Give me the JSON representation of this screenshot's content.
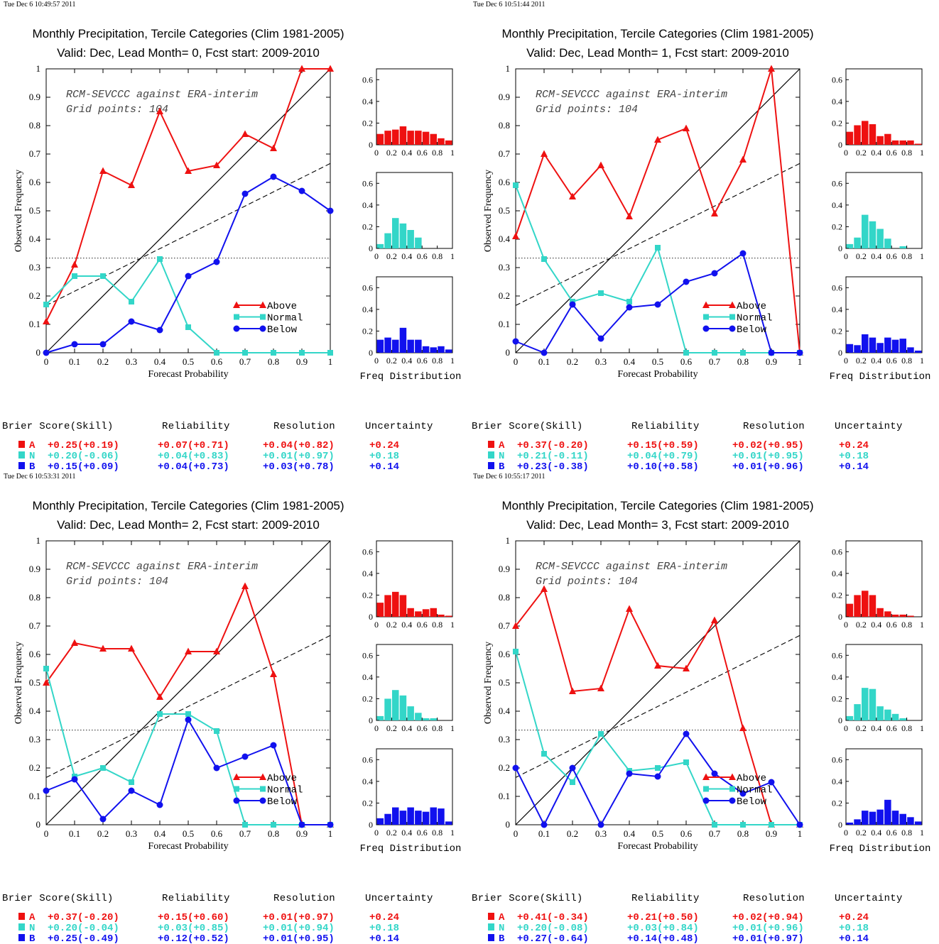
{
  "colors": {
    "above": "#ee1111",
    "normal": "#33d6c8",
    "below": "#1111ee"
  },
  "common": {
    "xlabel": "Forecast Probability",
    "ylabel": "Observed Frequency",
    "freq_label": "Freq Distribution",
    "note_line1": "RCM-SEVCCC against ERA-interim",
    "note_line2": "Grid points:  104",
    "legend": [
      "Above",
      "Normal",
      "Below"
    ],
    "score_headers": [
      "Brier Score(Skill)",
      "Reliability",
      "Resolution",
      "Uncertainty"
    ],
    "row_letters": [
      "A",
      "N",
      "B"
    ]
  },
  "chart_data": [
    {
      "type": "line",
      "timestamp": "Tue Dec  6 10:49:57 2011",
      "title": "Monthly Precipitation, Tercile Categories (Clim 1981-2005)",
      "subtitle": "Valid: Dec, Lead Month= 0, Fcst start: 2009-2010",
      "x": [
        0,
        0.1,
        0.2,
        0.3,
        0.4,
        0.5,
        0.6,
        0.7,
        0.8,
        0.9,
        1
      ],
      "xlim": [
        0,
        1
      ],
      "ylim": [
        0,
        1
      ],
      "series": [
        {
          "name": "Above",
          "values": [
            0.11,
            0.31,
            0.64,
            0.59,
            0.85,
            0.64,
            0.66,
            0.77,
            0.72,
            1.0,
            1.0
          ]
        },
        {
          "name": "Normal",
          "values": [
            0.17,
            0.27,
            0.27,
            0.18,
            0.33,
            0.09,
            0,
            0,
            0,
            0,
            0
          ]
        },
        {
          "name": "Below",
          "values": [
            0,
            0.03,
            0.03,
            0.11,
            0.08,
            0.27,
            0.32,
            0.56,
            0.62,
            0.57,
            0.5
          ]
        }
      ],
      "hist": [
        [
          0.1,
          0.13,
          0.14,
          0.17,
          0.13,
          0.13,
          0.12,
          0.1,
          0.06,
          0.04
        ],
        [
          0.04,
          0.14,
          0.28,
          0.23,
          0.17,
          0.1,
          0,
          0,
          0,
          0
        ],
        [
          0.12,
          0.14,
          0.12,
          0.23,
          0.12,
          0.12,
          0.06,
          0.05,
          0.06,
          0.03
        ]
      ],
      "scores": [
        [
          "+0.25(+0.19)",
          "+0.07(+0.71)",
          "+0.04(+0.82)",
          "+0.24"
        ],
        [
          "+0.20(-0.06)",
          "+0.04(+0.83)",
          "+0.01(+0.97)",
          "+0.18"
        ],
        [
          "+0.15(+0.09)",
          "+0.04(+0.73)",
          "+0.03(+0.78)",
          "+0.14"
        ]
      ]
    },
    {
      "type": "line",
      "timestamp": "Tue Dec  6 10:51:44 2011",
      "title": "Monthly Precipitation, Tercile Categories (Clim 1981-2005)",
      "subtitle": "Valid: Dec, Lead Month= 1, Fcst start: 2009-2010",
      "x": [
        0,
        0.1,
        0.2,
        0.3,
        0.4,
        0.5,
        0.6,
        0.7,
        0.8,
        0.9,
        1
      ],
      "xlim": [
        0,
        1
      ],
      "ylim": [
        0,
        1
      ],
      "series": [
        {
          "name": "Above",
          "values": [
            0.41,
            0.7,
            0.55,
            0.66,
            0.48,
            0.75,
            0.79,
            0.49,
            0.68,
            1.0,
            0
          ]
        },
        {
          "name": "Normal",
          "values": [
            0.59,
            0.33,
            0.18,
            0.21,
            0.18,
            0.37,
            0,
            0,
            0,
            0,
            0
          ]
        },
        {
          "name": "Below",
          "values": [
            0.04,
            0,
            0.17,
            0.05,
            0.16,
            0.17,
            0.25,
            0.28,
            0.35,
            0,
            0
          ]
        }
      ],
      "hist": [
        [
          0.12,
          0.18,
          0.22,
          0.19,
          0.08,
          0.1,
          0.04,
          0.04,
          0.04,
          0.01
        ],
        [
          0.04,
          0.1,
          0.31,
          0.25,
          0.18,
          0.09,
          0,
          0.02,
          0,
          0
        ],
        [
          0.08,
          0.07,
          0.17,
          0.14,
          0.09,
          0.14,
          0.12,
          0.13,
          0.05,
          0.02
        ]
      ],
      "scores": [
        [
          "+0.37(-0.20)",
          "+0.15(+0.59)",
          "+0.02(+0.95)",
          "+0.24"
        ],
        [
          "+0.21(-0.11)",
          "+0.04(+0.79)",
          "+0.01(+0.95)",
          "+0.18"
        ],
        [
          "+0.23(-0.38)",
          "+0.10(+0.58)",
          "+0.01(+0.96)",
          "+0.14"
        ]
      ]
    },
    {
      "type": "line",
      "timestamp": "Tue Dec  6 10:53:31 2011",
      "title": "Monthly Precipitation, Tercile Categories (Clim 1981-2005)",
      "subtitle": "Valid: Dec, Lead Month= 2, Fcst start: 2009-2010",
      "x": [
        0,
        0.1,
        0.2,
        0.3,
        0.4,
        0.5,
        0.6,
        0.7,
        0.8,
        0.9,
        1
      ],
      "xlim": [
        0,
        1
      ],
      "ylim": [
        0,
        1
      ],
      "series": [
        {
          "name": "Above",
          "values": [
            0.5,
            0.64,
            0.62,
            0.62,
            0.45,
            0.61,
            0.61,
            0.84,
            0.53,
            0,
            0
          ]
        },
        {
          "name": "Normal",
          "values": [
            0.55,
            0.17,
            0.2,
            0.15,
            0.39,
            0.39,
            0.33,
            0,
            0,
            0,
            0
          ]
        },
        {
          "name": "Below",
          "values": [
            0.12,
            0.16,
            0.02,
            0.12,
            0.07,
            0.37,
            0.2,
            0.24,
            0.28,
            0,
            0
          ]
        }
      ],
      "hist": [
        [
          0.13,
          0.2,
          0.23,
          0.2,
          0.08,
          0.05,
          0.07,
          0.08,
          0.02,
          0.01
        ],
        [
          0.04,
          0.2,
          0.28,
          0.23,
          0.13,
          0.07,
          0.02,
          0.02,
          0,
          0
        ],
        [
          0.06,
          0.1,
          0.16,
          0.13,
          0.16,
          0.13,
          0.12,
          0.16,
          0.15,
          0.03
        ]
      ],
      "scores": [
        [
          "+0.37(-0.20)",
          "+0.15(+0.60)",
          "+0.01(+0.97)",
          "+0.24"
        ],
        [
          "+0.20(-0.04)",
          "+0.03(+0.85)",
          "+0.01(+0.94)",
          "+0.18"
        ],
        [
          "+0.25(-0.49)",
          "+0.12(+0.52)",
          "+0.01(+0.95)",
          "+0.14"
        ]
      ]
    },
    {
      "type": "line",
      "timestamp": "Tue Dec  6 10:55:17 2011",
      "title": "Monthly Precipitation, Tercile Categories (Clim 1981-2005)",
      "subtitle": "Valid: Dec, Lead Month= 3, Fcst start: 2009-2010",
      "x": [
        0,
        0.1,
        0.2,
        0.3,
        0.4,
        0.5,
        0.6,
        0.7,
        0.8,
        0.9,
        1
      ],
      "xlim": [
        0,
        1
      ],
      "ylim": [
        0,
        1
      ],
      "series": [
        {
          "name": "Above",
          "values": [
            0.7,
            0.83,
            0.47,
            0.48,
            0.76,
            0.56,
            0.55,
            0.72,
            0.34,
            0,
            0
          ]
        },
        {
          "name": "Normal",
          "values": [
            0.61,
            0.25,
            0.15,
            0.32,
            0.19,
            0.2,
            0.22,
            0,
            0,
            0,
            0
          ]
        },
        {
          "name": "Below",
          "values": [
            0.2,
            0,
            0.2,
            0,
            0.18,
            0.17,
            0.32,
            0.18,
            0.11,
            0.15,
            0
          ]
        }
      ],
      "hist": [
        [
          0.12,
          0.2,
          0.24,
          0.2,
          0.08,
          0.05,
          0.02,
          0.02,
          0.01,
          0
        ],
        [
          0.04,
          0.15,
          0.3,
          0.29,
          0.13,
          0.1,
          0.06,
          0.02,
          0,
          0
        ],
        [
          0.02,
          0.05,
          0.13,
          0.12,
          0.14,
          0.23,
          0.13,
          0.1,
          0.07,
          0.03
        ]
      ],
      "scores": [
        [
          "+0.41(-0.34)",
          "+0.21(+0.50)",
          "+0.02(+0.94)",
          "+0.24"
        ],
        [
          "+0.20(-0.08)",
          "+0.03(+0.84)",
          "+0.01(+0.96)",
          "+0.18"
        ],
        [
          "+0.27(-0.64)",
          "+0.14(+0.48)",
          "+0.01(+0.97)",
          "+0.14"
        ]
      ]
    }
  ]
}
